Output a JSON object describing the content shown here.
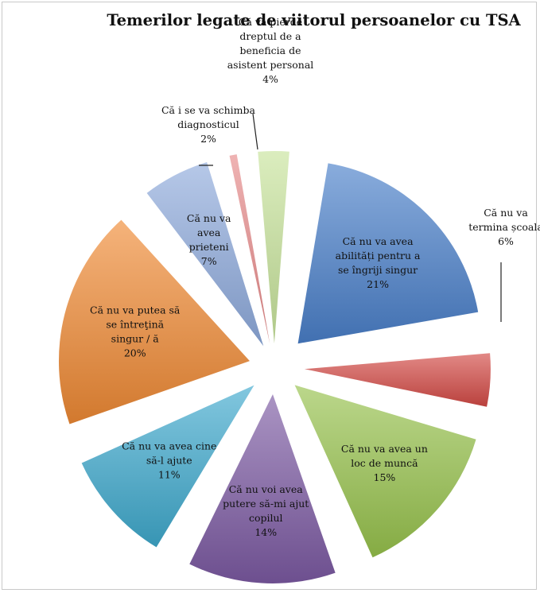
{
  "chart_data": {
    "type": "pie",
    "title": "Temerilor legate de viitorul persoanelor cu TSA",
    "slices": [
      {
        "label": [
          "Că nu va avea",
          "abilități pentru a",
          "se îngriji singur"
        ],
        "pct_label": "21%",
        "value": 21,
        "color": "#4a7fc9"
      },
      {
        "label": [
          "Că nu va",
          "termina școala"
        ],
        "pct_label": "6%",
        "value": 6,
        "color": "#d34a45"
      },
      {
        "label": [
          "Că nu va avea un",
          "loc de muncă"
        ],
        "pct_label": "15%",
        "value": 15,
        "color": "#97c24c"
      },
      {
        "label": [
          "Că nu voi avea",
          "putere să-mi ajut",
          "copilul"
        ],
        "pct_label": "14%",
        "value": 14,
        "color": "#7c5aa3"
      },
      {
        "label": [
          "Că nu va avea cine",
          "să-l ajute"
        ],
        "pct_label": "11%",
        "value": 11,
        "color": "#3ea9cd"
      },
      {
        "label": [
          "Că nu va putea să",
          "se întreţină",
          "singur / ă"
        ],
        "pct_label": "20%",
        "value": 20,
        "color": "#ef8a34"
      },
      {
        "label": [
          "Că nu va",
          "avea",
          "prieteni"
        ],
        "pct_label": "7%",
        "value": 7,
        "color": "#8eaadc"
      },
      {
        "label": [
          "Că i se va schimba",
          "diagnosticul"
        ],
        "pct_label": "2%",
        "value": 2,
        "color": "#e78a8a"
      },
      {
        "label": [
          "Că va pierde",
          "dreptul de a",
          "beneficia de",
          "asistent personal"
        ],
        "pct_label": "4%",
        "value": 4,
        "color": "#c7e39b"
      }
    ]
  }
}
